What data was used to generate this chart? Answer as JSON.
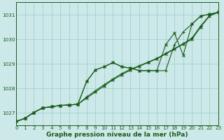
{
  "background_color": "#cce8e8",
  "grid_color": "#99cccc",
  "line_color": "#1a5c1a",
  "xlabel": "Graphe pression niveau de la mer (hPa)",
  "xlim": [
    0,
    23
  ],
  "ylim": [
    1026.5,
    1031.5
  ],
  "yticks": [
    1027,
    1028,
    1029,
    1030,
    1031
  ],
  "xtick_labels": [
    "0",
    "1",
    "2",
    "3",
    "4",
    "5",
    "6",
    "7",
    "8",
    "9",
    "10",
    "11",
    "12",
    "13",
    "14",
    "15",
    "16",
    "17",
    "18",
    "19",
    "20",
    "21",
    "22",
    "23"
  ],
  "xticks": [
    0,
    1,
    2,
    3,
    4,
    5,
    6,
    7,
    8,
    9,
    10,
    11,
    12,
    13,
    14,
    15,
    16,
    17,
    18,
    19,
    20,
    21,
    22,
    23
  ],
  "series": [
    [
      1026.65,
      1026.78,
      1027.02,
      1027.2,
      1027.25,
      1027.3,
      1027.32,
      1027.35,
      1027.6,
      1027.85,
      1028.1,
      1028.35,
      1028.55,
      1028.75,
      1028.9,
      1029.05,
      1029.2,
      1029.4,
      1029.6,
      1029.8,
      1030.0,
      1030.5,
      1030.95,
      1031.1
    ],
    [
      1026.65,
      1026.78,
      1027.02,
      1027.2,
      1027.25,
      1027.3,
      1027.32,
      1027.35,
      1027.65,
      1027.9,
      1028.15,
      1028.38,
      1028.6,
      1028.78,
      1028.92,
      1029.07,
      1029.22,
      1029.42,
      1029.62,
      1029.82,
      1030.05,
      1030.55,
      1030.97,
      1031.1
    ],
    [
      1026.65,
      1026.78,
      1027.02,
      1027.2,
      1027.25,
      1027.3,
      1027.32,
      1027.35,
      1028.28,
      1028.75,
      1028.88,
      1029.05,
      1028.88,
      1028.82,
      1028.72,
      1028.72,
      1028.72,
      1028.72,
      1029.78,
      1030.3,
      1030.62,
      1030.95,
      1031.02,
      1031.1
    ],
    [
      1026.65,
      1026.78,
      1027.02,
      1027.2,
      1027.25,
      1027.3,
      1027.32,
      1027.35,
      1028.28,
      1028.75,
      1028.88,
      1029.05,
      1028.88,
      1028.82,
      1028.72,
      1028.72,
      1028.72,
      1029.78,
      1030.25,
      1029.35,
      1030.62,
      1030.95,
      1031.02,
      1031.1
    ]
  ],
  "markers": [
    "x",
    "+",
    "+",
    "x"
  ]
}
